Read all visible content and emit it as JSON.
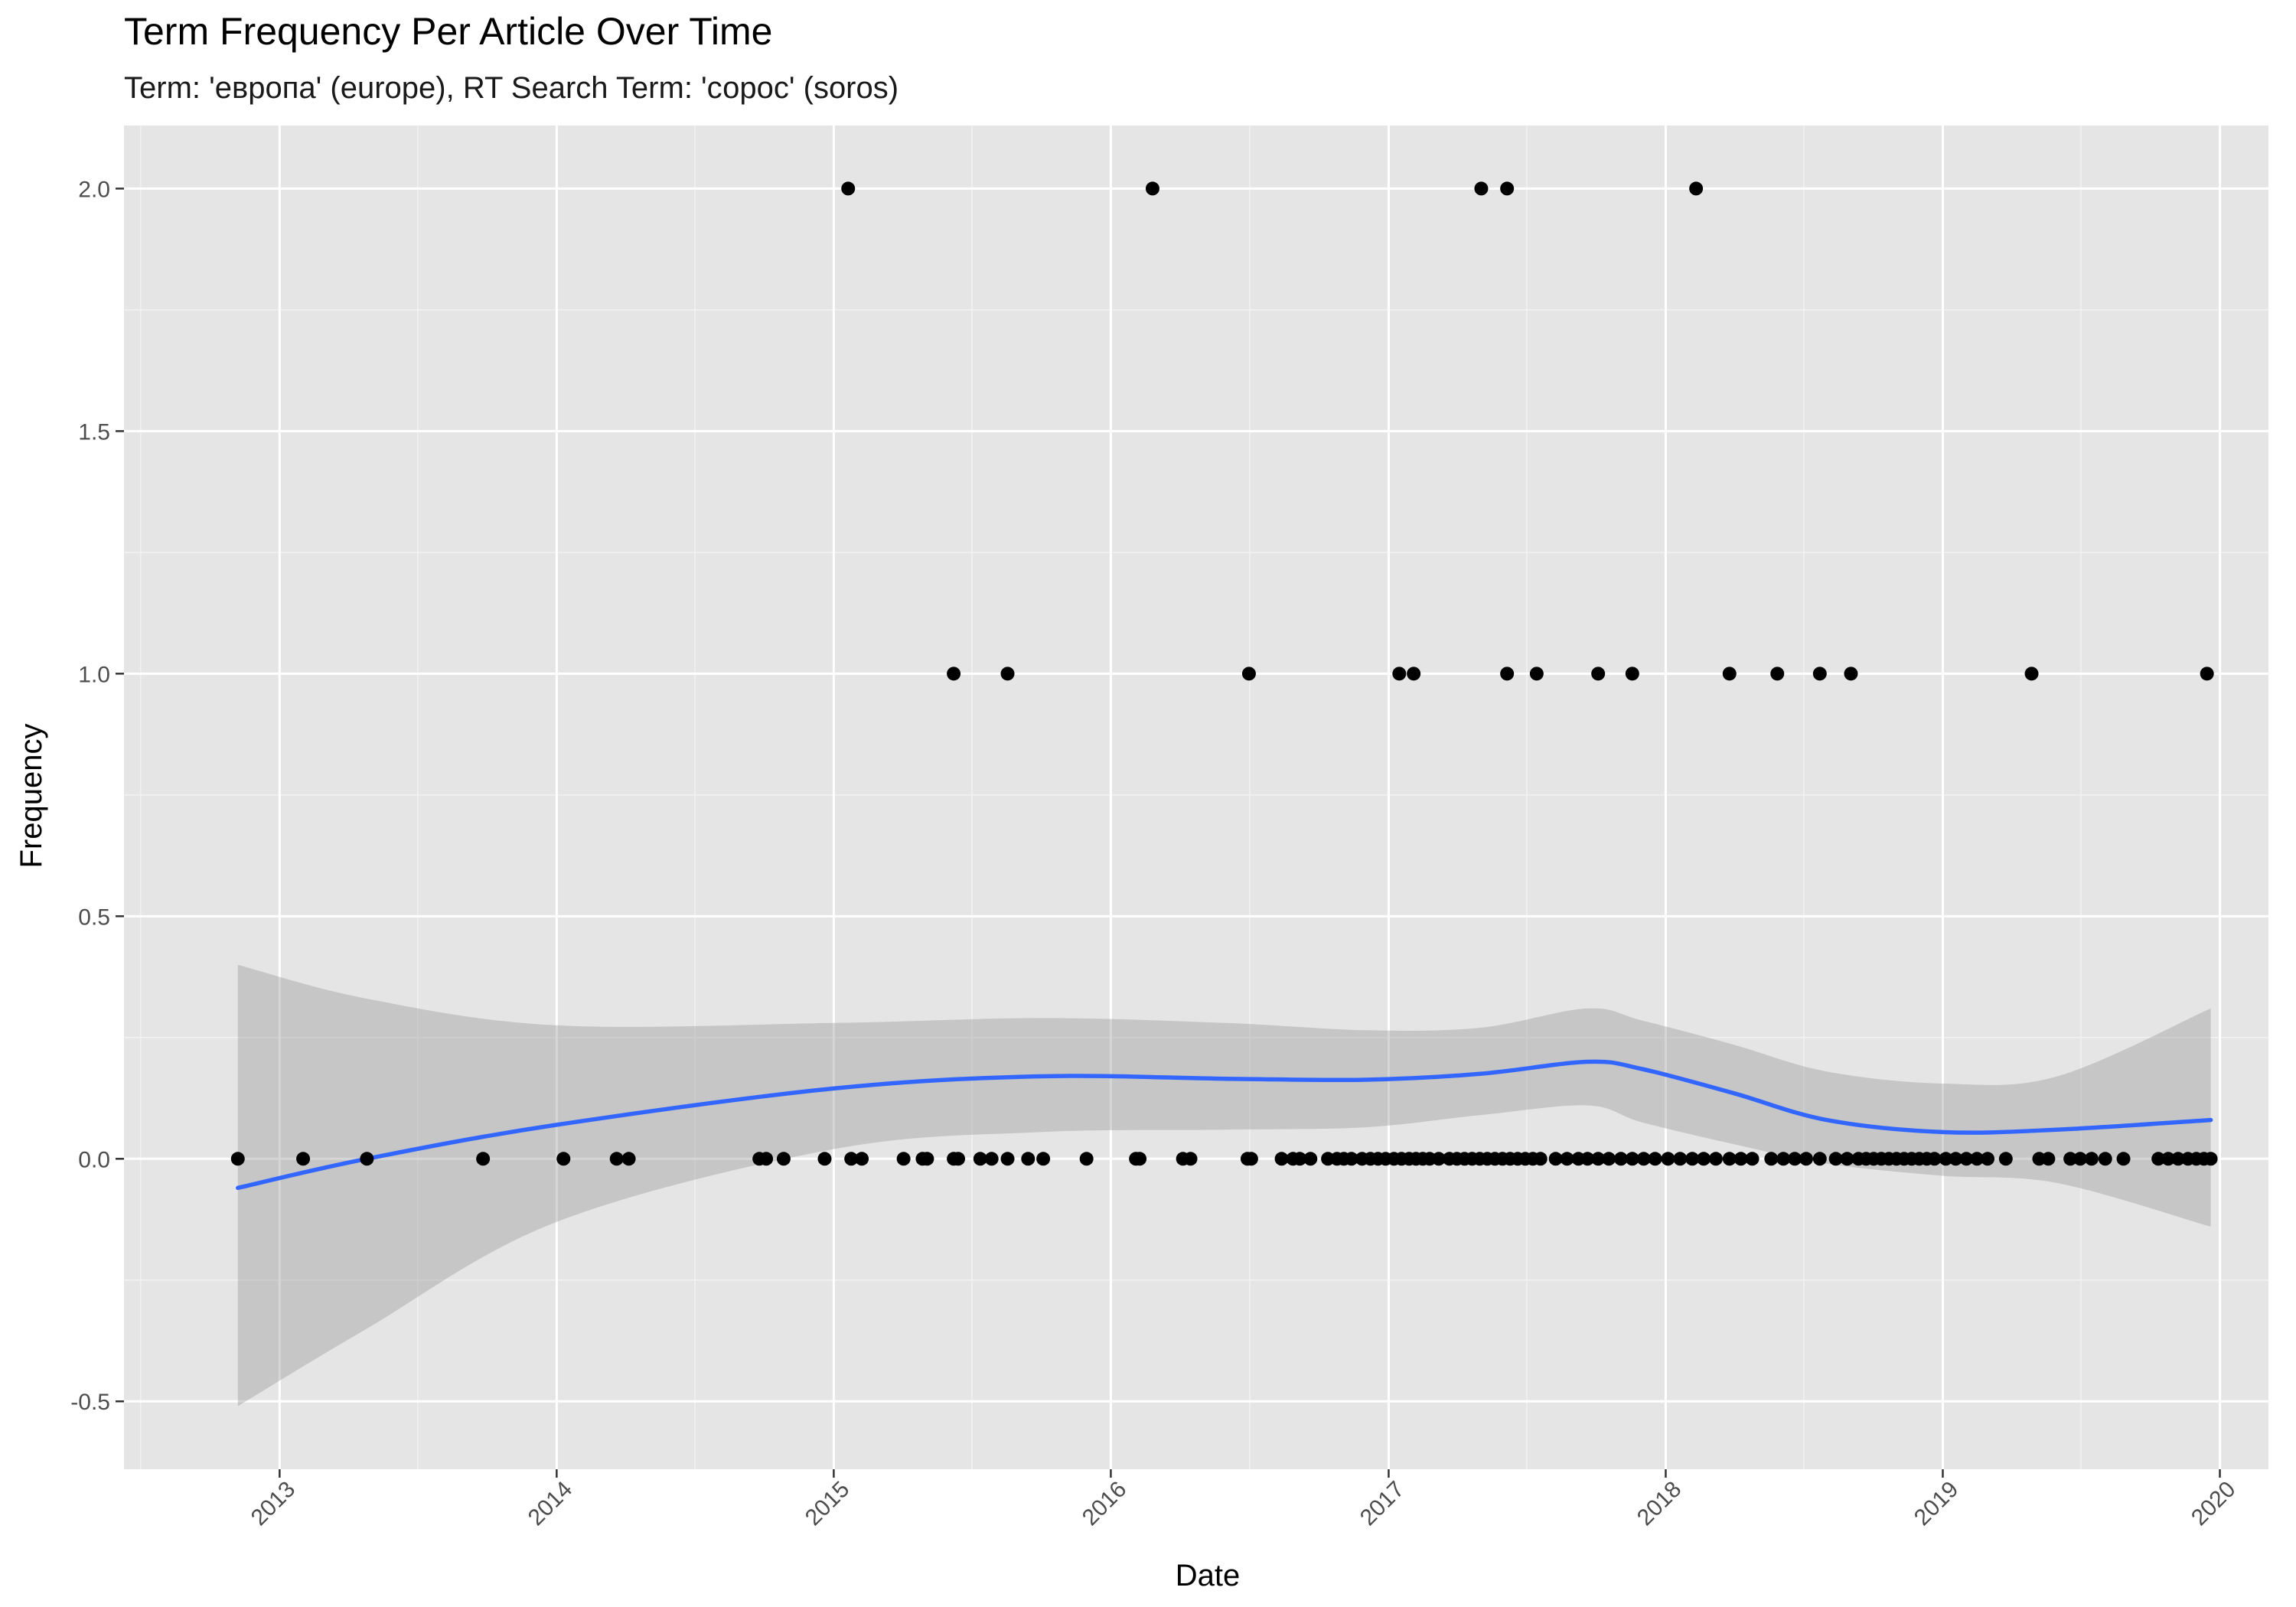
{
  "colors": {
    "panel_bg": "#e5e5e5",
    "grid_major": "#ffffff",
    "grid_minor": "#f2f2f2",
    "point": "#000000",
    "smooth_line": "#3366ff",
    "ribbon": "#999999",
    "tick_label": "#4d4d4d"
  },
  "chart_data": {
    "type": "scatter",
    "title": "Term Frequency Per Article Over Time",
    "subtitle": "Term: 'европа' (europe), RT Search Term: 'сорос' (soros)",
    "xlabel": "Date",
    "ylabel": "Frequency",
    "x_axis_type": "date",
    "xlim": [
      "2012-06-10",
      "2020-03-05"
    ],
    "ylim": [
      -0.64,
      2.13
    ],
    "x_ticks": [
      {
        "label": "2013",
        "date": "2013-01-01"
      },
      {
        "label": "2014",
        "date": "2014-01-01"
      },
      {
        "label": "2015",
        "date": "2015-01-01"
      },
      {
        "label": "2016",
        "date": "2016-01-01"
      },
      {
        "label": "2017",
        "date": "2017-01-01"
      },
      {
        "label": "2018",
        "date": "2018-01-01"
      },
      {
        "label": "2019",
        "date": "2019-01-01"
      },
      {
        "label": "2020",
        "date": "2020-01-01"
      }
    ],
    "y_ticks": [
      {
        "label": "-0.5",
        "value": -0.5
      },
      {
        "label": "0.0",
        "value": 0.0
      },
      {
        "label": "0.5",
        "value": 0.5
      },
      {
        "label": "1.0",
        "value": 1.0
      },
      {
        "label": "1.5",
        "value": 1.5
      },
      {
        "label": "2.0",
        "value": 2.0
      }
    ],
    "grid": true,
    "legend": "none",
    "points": {
      "2": [
        "2015-01-20",
        "2016-02-25",
        "2017-05-03",
        "2017-06-06",
        "2018-02-10"
      ],
      "1": [
        "2015-06-08",
        "2015-08-18",
        "2016-07-01",
        "2017-01-15",
        "2017-02-03",
        "2017-06-06",
        "2017-07-15",
        "2017-10-04",
        "2017-11-18",
        "2018-03-26",
        "2018-05-28",
        "2018-07-23",
        "2018-09-02",
        "2019-04-28",
        "2019-12-15"
      ],
      "0": [
        "2012-11-07",
        "2013-02-01",
        "2013-04-26",
        "2013-09-26",
        "2014-01-10",
        "2014-03-21",
        "2014-04-06",
        "2014-09-25",
        "2014-10-04",
        "2014-10-27",
        "2014-12-20",
        "2015-01-24",
        "2015-02-07",
        "2015-04-03",
        "2015-04-28",
        "2015-05-04",
        "2015-06-08",
        "2015-06-14",
        "2015-07-13",
        "2015-07-28",
        "2015-08-18",
        "2015-09-14",
        "2015-10-04",
        "2015-11-30",
        "2016-02-03",
        "2016-02-08",
        "2016-04-05",
        "2016-04-15",
        "2016-06-29",
        "2016-07-04",
        "2016-08-13",
        "2016-08-28",
        "2016-09-06",
        "2016-09-20",
        "2016-10-13",
        "2016-10-25",
        "2016-11-03",
        "2016-11-13",
        "2016-11-27",
        "2016-12-08",
        "2016-12-18",
        "2016-12-28",
        "2017-01-08",
        "2017-01-18",
        "2017-01-28",
        "2017-02-06",
        "2017-02-15",
        "2017-02-24",
        "2017-03-08",
        "2017-03-22",
        "2017-04-01",
        "2017-04-11",
        "2017-04-21",
        "2017-05-01",
        "2017-05-11",
        "2017-05-21",
        "2017-05-31",
        "2017-06-10",
        "2017-06-20",
        "2017-06-30",
        "2017-07-10",
        "2017-07-20",
        "2017-08-09",
        "2017-08-24",
        "2017-09-08",
        "2017-09-20",
        "2017-10-04",
        "2017-10-18",
        "2017-11-03",
        "2017-11-18",
        "2017-12-03",
        "2017-12-18",
        "2018-01-04",
        "2018-01-20",
        "2018-02-05",
        "2018-02-20",
        "2018-03-08",
        "2018-03-26",
        "2018-04-10",
        "2018-04-25",
        "2018-05-20",
        "2018-06-05",
        "2018-06-20",
        "2018-07-05",
        "2018-07-23",
        "2018-08-13",
        "2018-08-28",
        "2018-09-12",
        "2018-09-22",
        "2018-10-02",
        "2018-10-12",
        "2018-10-22",
        "2018-11-01",
        "2018-11-11",
        "2018-11-21",
        "2018-12-01",
        "2018-12-11",
        "2018-12-21",
        "2019-01-05",
        "2019-01-18",
        "2019-02-01",
        "2019-02-15",
        "2019-03-01",
        "2019-03-25",
        "2019-05-08",
        "2019-05-20",
        "2019-06-18",
        "2019-07-01",
        "2019-07-16",
        "2019-08-03",
        "2019-08-27",
        "2019-10-12",
        "2019-10-25",
        "2019-11-07",
        "2019-11-20",
        "2019-12-01",
        "2019-12-11",
        "2019-12-20"
      ]
    },
    "smooth": {
      "method": "loess",
      "x": [
        "2012-11-07",
        "2013-04-26",
        "2014-01-01",
        "2015-01-01",
        "2015-10-01",
        "2016-06-01",
        "2016-12-01",
        "2017-05-01",
        "2017-09-20",
        "2017-12-01",
        "2018-04-01",
        "2018-08-01",
        "2019-01-01",
        "2019-06-01",
        "2019-12-20"
      ],
      "fit": [
        -0.06,
        0.0,
        0.07,
        0.145,
        0.17,
        0.165,
        0.163,
        0.175,
        0.2,
        0.185,
        0.135,
        0.08,
        0.055,
        0.06,
        0.08
      ],
      "lower": [
        -0.51,
        -0.35,
        -0.13,
        0.02,
        0.055,
        0.06,
        0.065,
        0.09,
        0.11,
        0.075,
        0.03,
        -0.01,
        -0.035,
        -0.05,
        -0.14
      ],
      "upper": [
        0.4,
        0.33,
        0.275,
        0.28,
        0.29,
        0.28,
        0.265,
        0.27,
        0.31,
        0.285,
        0.235,
        0.18,
        0.155,
        0.17,
        0.31
      ]
    }
  }
}
